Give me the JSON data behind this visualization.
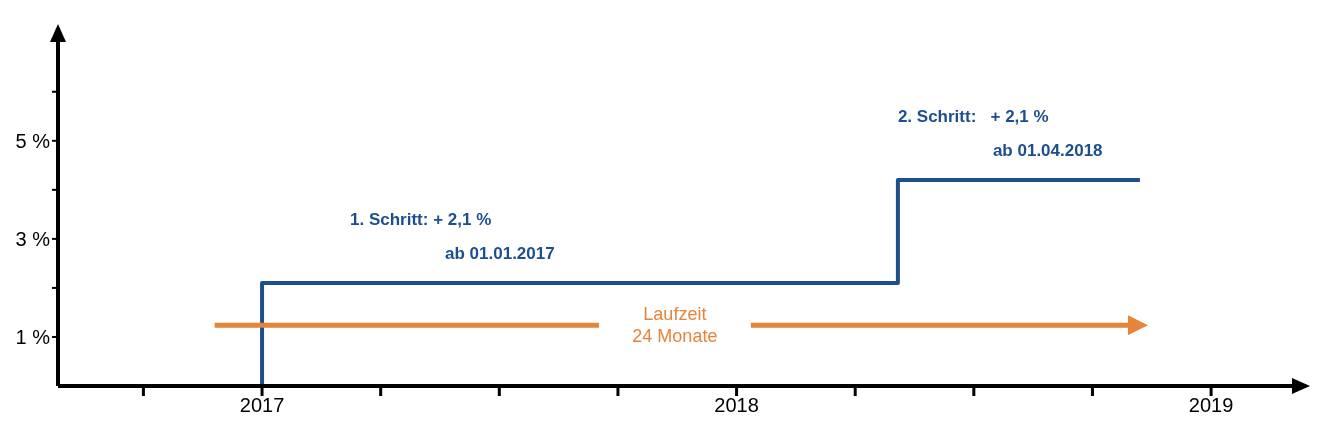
{
  "chart_data": {
    "type": "step",
    "series": [
      {
        "color": "#1d4f8f",
        "x": [
          2017,
          2017,
          2018.34,
          2018.85
        ],
        "values": [
          0,
          2.1,
          4.2,
          4.2
        ]
      },
      {
        "type": "line",
        "name": "Laufzeit 24 Monate",
        "color": "#e8833a",
        "x": [
          2016.9,
          2017.71,
          2017.87,
          2018.03,
          2018.85
        ],
        "values": [
          1.24,
          1.24,
          null,
          1.24,
          1.24
        ]
      }
    ],
    "xlim": [
      2016.57,
      2019.2
    ],
    "xticks": [
      {
        "value": 2016.75,
        "label": null
      },
      {
        "value": 2017,
        "label": "2017"
      },
      {
        "value": 2017.25,
        "label": null
      },
      {
        "value": 2017.5,
        "label": null
      },
      {
        "value": 2017.75,
        "label": null
      },
      {
        "value": 2018,
        "label": "2018"
      },
      {
        "value": 2018.25,
        "label": null
      },
      {
        "value": 2018.5,
        "label": null
      },
      {
        "value": 2018.75,
        "label": null
      },
      {
        "value": 2019,
        "label": "2019"
      }
    ],
    "ylim": [
      0,
      7.3
    ],
    "yticks": [
      {
        "value": 1,
        "label": "1 %"
      },
      {
        "value": 2,
        "label": null
      },
      {
        "value": 3,
        "label": "3 %"
      },
      {
        "value": 4,
        "label": null
      },
      {
        "value": 5,
        "label": "5 %"
      },
      {
        "value": 6,
        "label": null
      }
    ],
    "annotations": [
      "1. Schritt: + 2,1 %",
      "ab 01.01.2017",
      "2. Schritt:   + 2,1 %",
      "ab 01.04.2018"
    ],
    "marker": "none",
    "grid": false,
    "legend": false
  }
}
